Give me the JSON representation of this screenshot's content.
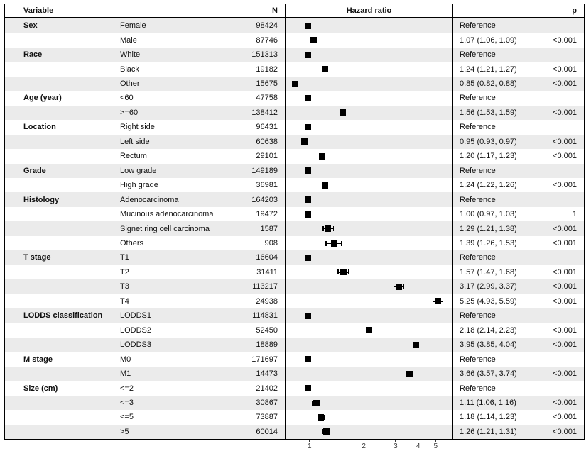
{
  "figure": {
    "columns": {
      "variable": "Variable",
      "n": "N",
      "hazard_ratio": "Hazard ratio",
      "p": "p"
    }
  },
  "colors": {
    "row_alt": "#ebebeb",
    "border": "#000000",
    "marker": "#000000",
    "tick_label": "#3a3a3a"
  },
  "chart_data": {
    "type": "forest",
    "xlabel": "Hazard ratio",
    "axis": {
      "scale": "log",
      "min": 0.75,
      "max": 6.2,
      "ticks": [
        1,
        2,
        3,
        4,
        5
      ],
      "reference_line": 1
    },
    "rows": [
      {
        "group": "Sex",
        "label": "Female",
        "n": "98424",
        "hr": 1.0,
        "lo": null,
        "hi": null,
        "est": "Reference",
        "p": ""
      },
      {
        "group": "",
        "label": "Male",
        "n": "87746",
        "hr": 1.07,
        "lo": 1.06,
        "hi": 1.09,
        "est": "1.07 (1.06, 1.09)",
        "p": "<0.001"
      },
      {
        "group": "Race",
        "label": "White",
        "n": "151313",
        "hr": 1.0,
        "lo": null,
        "hi": null,
        "est": "Reference",
        "p": ""
      },
      {
        "group": "",
        "label": "Black",
        "n": "19182",
        "hr": 1.24,
        "lo": 1.21,
        "hi": 1.27,
        "est": "1.24 (1.21, 1.27)",
        "p": "<0.001"
      },
      {
        "group": "",
        "label": "Other",
        "n": "15675",
        "hr": 0.85,
        "lo": 0.82,
        "hi": 0.88,
        "est": "0.85 (0.82, 0.88)",
        "p": "<0.001"
      },
      {
        "group": "Age (year)",
        "label": "<60",
        "n": "47758",
        "hr": 1.0,
        "lo": null,
        "hi": null,
        "est": "Reference",
        "p": ""
      },
      {
        "group": "",
        "label": ">=60",
        "n": "138412",
        "hr": 1.56,
        "lo": 1.53,
        "hi": 1.59,
        "est": "1.56 (1.53, 1.59)",
        "p": "<0.001"
      },
      {
        "group": "Location",
        "label": "Right side",
        "n": "96431",
        "hr": 1.0,
        "lo": null,
        "hi": null,
        "est": "Reference",
        "p": ""
      },
      {
        "group": "",
        "label": "Left side",
        "n": "60638",
        "hr": 0.95,
        "lo": 0.93,
        "hi": 0.97,
        "est": "0.95 (0.93, 0.97)",
        "p": "<0.001"
      },
      {
        "group": "",
        "label": "Rectum",
        "n": "29101",
        "hr": 1.2,
        "lo": 1.17,
        "hi": 1.23,
        "est": "1.20 (1.17, 1.23)",
        "p": "<0.001"
      },
      {
        "group": "Grade",
        "label": "Low grade",
        "n": "149189",
        "hr": 1.0,
        "lo": null,
        "hi": null,
        "est": "Reference",
        "p": ""
      },
      {
        "group": "",
        "label": "High grade",
        "n": "36981",
        "hr": 1.24,
        "lo": 1.22,
        "hi": 1.26,
        "est": "1.24 (1.22, 1.26)",
        "p": "<0.001"
      },
      {
        "group": "Histology",
        "label": "Adenocarcinoma",
        "n": "164203",
        "hr": 1.0,
        "lo": null,
        "hi": null,
        "est": "Reference",
        "p": ""
      },
      {
        "group": "",
        "label": "Mucinous adenocarcinoma",
        "n": "19472",
        "hr": 1.0,
        "lo": 0.97,
        "hi": 1.03,
        "est": "1.00 (0.97, 1.03)",
        "p": "1"
      },
      {
        "group": "",
        "label": "Signet ring cell carcinoma",
        "n": "1587",
        "hr": 1.29,
        "lo": 1.21,
        "hi": 1.38,
        "est": "1.29 (1.21, 1.38)",
        "p": "<0.001"
      },
      {
        "group": "",
        "label": "Others",
        "n": "908",
        "hr": 1.39,
        "lo": 1.26,
        "hi": 1.53,
        "est": "1.39 (1.26, 1.53)",
        "p": "<0.001"
      },
      {
        "group": "T stage",
        "label": "T1",
        "n": "16604",
        "hr": 1.0,
        "lo": null,
        "hi": null,
        "est": "Reference",
        "p": ""
      },
      {
        "group": "",
        "label": "T2",
        "n": "31411",
        "hr": 1.57,
        "lo": 1.47,
        "hi": 1.68,
        "est": "1.57 (1.47, 1.68)",
        "p": "<0.001"
      },
      {
        "group": "",
        "label": "T3",
        "n": "113217",
        "hr": 3.17,
        "lo": 2.99,
        "hi": 3.37,
        "est": "3.17 (2.99, 3.37)",
        "p": "<0.001"
      },
      {
        "group": "",
        "label": "T4",
        "n": "24938",
        "hr": 5.25,
        "lo": 4.93,
        "hi": 5.59,
        "est": "5.25 (4.93, 5.59)",
        "p": "<0.001"
      },
      {
        "group": "LODDS classification",
        "label": "LODDS1",
        "n": "114831",
        "hr": 1.0,
        "lo": null,
        "hi": null,
        "est": "Reference",
        "p": ""
      },
      {
        "group": "",
        "label": "LODDS2",
        "n": "52450",
        "hr": 2.18,
        "lo": 2.14,
        "hi": 2.23,
        "est": "2.18 (2.14, 2.23)",
        "p": "<0.001"
      },
      {
        "group": "",
        "label": "LODDS3",
        "n": "18889",
        "hr": 3.95,
        "lo": 3.85,
        "hi": 4.04,
        "est": "3.95 (3.85, 4.04)",
        "p": "<0.001"
      },
      {
        "group": "M stage",
        "label": "M0",
        "n": "171697",
        "hr": 1.0,
        "lo": null,
        "hi": null,
        "est": "Reference",
        "p": ""
      },
      {
        "group": "",
        "label": "M1",
        "n": "14473",
        "hr": 3.66,
        "lo": 3.57,
        "hi": 3.74,
        "est": "3.66 (3.57, 3.74)",
        "p": "<0.001"
      },
      {
        "group": "Size (cm)",
        "label": "<=2",
        "n": "21402",
        "hr": 1.0,
        "lo": null,
        "hi": null,
        "est": "Reference",
        "p": ""
      },
      {
        "group": "",
        "label": "<=3",
        "n": "30867",
        "hr": 1.11,
        "lo": 1.06,
        "hi": 1.16,
        "est": "1.11 (1.06, 1.16)",
        "p": "<0.001"
      },
      {
        "group": "",
        "label": "<=5",
        "n": "73887",
        "hr": 1.18,
        "lo": 1.14,
        "hi": 1.23,
        "est": "1.18 (1.14, 1.23)",
        "p": "<0.001"
      },
      {
        "group": "",
        "label": ">5",
        "n": "60014",
        "hr": 1.26,
        "lo": 1.21,
        "hi": 1.31,
        "est": "1.26 (1.21, 1.31)",
        "p": "<0.001"
      }
    ]
  }
}
